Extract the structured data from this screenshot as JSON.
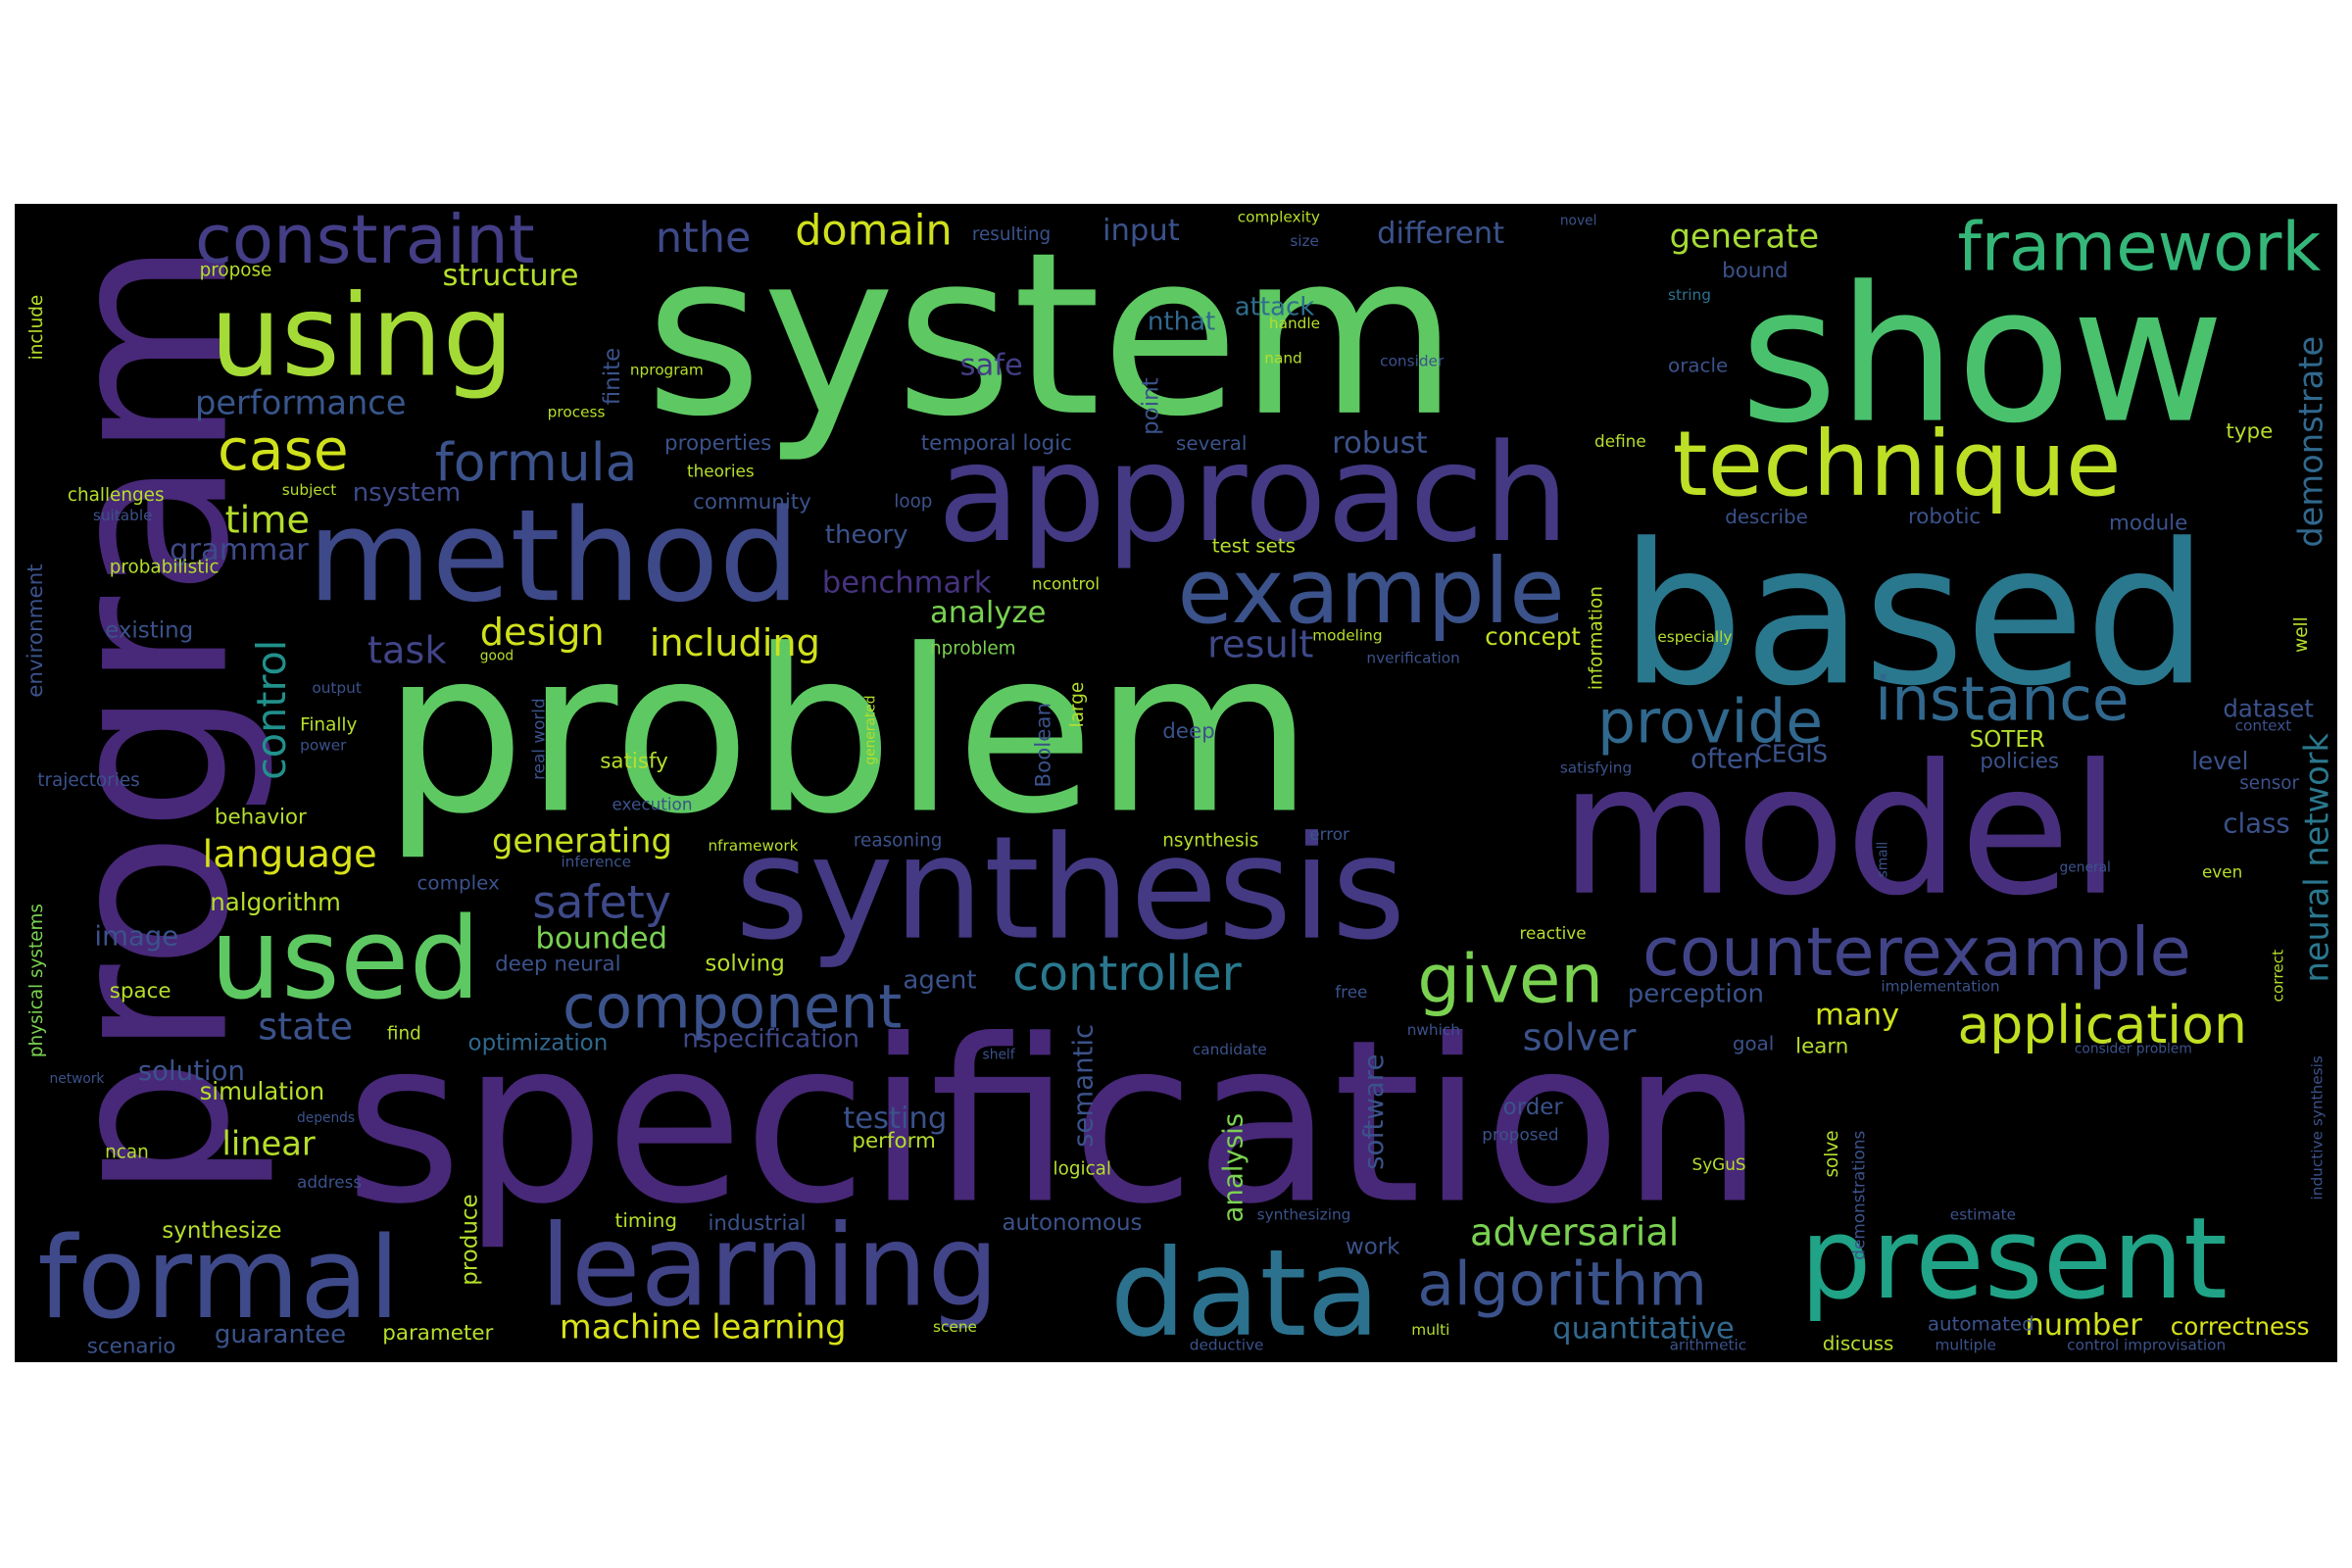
{
  "words": [
    "system",
    "show",
    "problem",
    "specification",
    "model",
    "based",
    "program",
    "synthesis",
    "approach",
    "method",
    "example",
    "data",
    "present",
    "learning",
    "formal",
    "used",
    "using",
    "technique",
    "constraint",
    "framework",
    "counterexample",
    "component",
    "algorithm",
    "instance",
    "provide",
    "application",
    "given",
    "safety",
    "controller",
    "formula",
    "case",
    "domain",
    "nthe",
    "generate",
    "structure",
    "performance",
    "input",
    "different",
    "attack",
    "safe",
    "nthat",
    "time",
    "grammar",
    "robust",
    "nsystem",
    "design",
    "including",
    "analyze",
    "benchmark",
    "theory",
    "task",
    "result",
    "control",
    "demonstrate",
    "neural network",
    "language",
    "generating",
    "state",
    "bounded",
    "solver",
    "many",
    "linear",
    "testing",
    "adversarial",
    "machine learning",
    "quantitative",
    "number",
    "correctness",
    "guarantee",
    "parameter",
    "scenario",
    "synthesize",
    "solution",
    "simulation",
    "image",
    "space",
    "nalgorithm",
    "behavior",
    "existing",
    "trajectories",
    "challenges",
    "probabilistic",
    "propose",
    "include",
    "environment",
    "physical systems",
    "optimization",
    "nspecification",
    "agent",
    "perception",
    "dataset",
    "level",
    "class",
    "often",
    "CEGIS",
    "SOTER",
    "policies",
    "concept",
    "information",
    "Boolean",
    "large",
    "satisfy",
    "deep",
    "semantic",
    "analysis",
    "software",
    "produce",
    "point",
    "finite",
    "solving",
    "perform",
    "timing",
    "industrial",
    "autonomous",
    "logical",
    "work",
    "order",
    "solve",
    "learn",
    "temporal logic",
    "properties",
    "community",
    "theories",
    "loop",
    "several",
    "test sets",
    "describe",
    "robotic",
    "module",
    "type",
    "define",
    "oracle",
    "bound",
    "string",
    "novel",
    "complexity",
    "size",
    "resulting",
    "handle",
    "nand",
    "consider",
    "nprogram",
    "process",
    "nproblem",
    "ncontrol",
    "modeling",
    "nverification",
    "especially",
    "well",
    "context",
    "sensor",
    "even",
    "general",
    "small",
    "error",
    "nsynthesis",
    "reasoning",
    "nframework",
    "inference",
    "complex",
    "deep neural",
    "reactive",
    "free",
    "implementation",
    "nwhich",
    "find",
    "candidate",
    "shelf",
    "goal",
    "consider problem",
    "depends",
    "ncan",
    "address",
    "network",
    "proposed",
    "SyGuS",
    "demonstrations",
    "estimate",
    "synthesizing",
    "automated",
    "multiple",
    "arithmetic",
    "control improvisation",
    "discuss",
    "deductive",
    "multi",
    "scene",
    "correct",
    "inductive synthesis",
    "Finally",
    "power",
    "output",
    "good",
    "real world",
    "generated",
    "execution",
    "satisfying",
    "subject",
    "suitable"
  ]
}
